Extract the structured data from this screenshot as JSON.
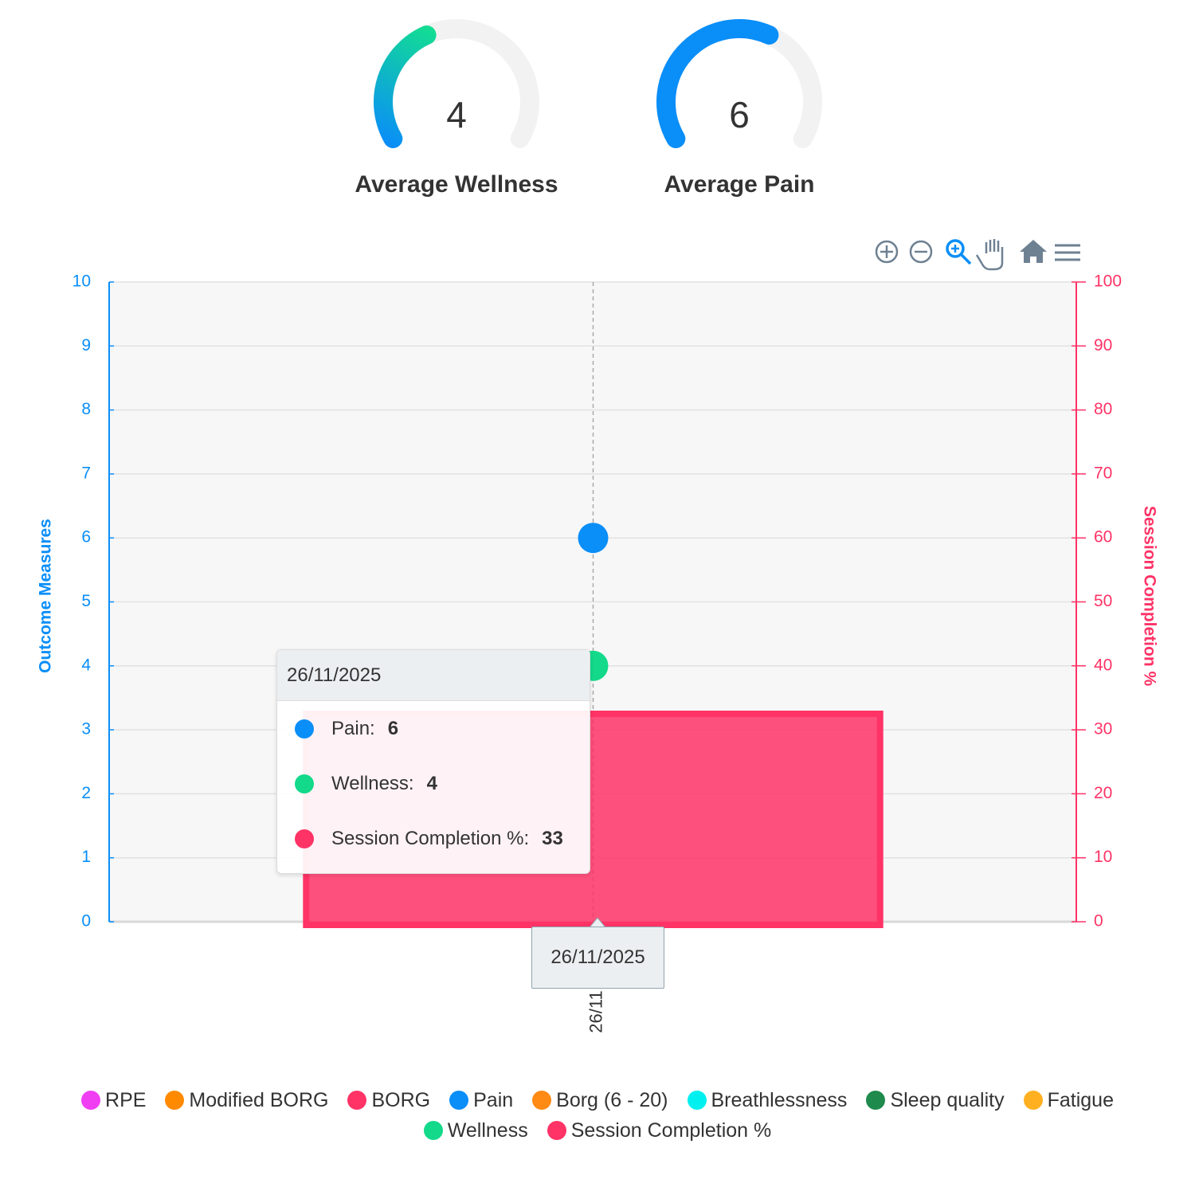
{
  "chart_data": [
    {
      "type": "gauge",
      "title": "Average Wellness",
      "value": 4,
      "ylim": [
        0,
        10
      ],
      "colors": [
        "#0a8ef8",
        "#13e08f"
      ]
    },
    {
      "type": "gauge",
      "title": "Average Pain",
      "value": 6,
      "ylim": [
        0,
        10
      ],
      "colors": [
        "#0a8ef8",
        "#0a8ef8"
      ]
    },
    {
      "type": "combo",
      "categories": [
        "26/11"
      ],
      "y_label": "Outcome Measures",
      "y2_label": "Session Completion %",
      "ylim": [
        0,
        10
      ],
      "yticks": [
        0,
        1,
        2,
        3,
        4,
        5,
        6,
        7,
        8,
        9,
        10
      ],
      "y2lim": [
        0,
        100
      ],
      "y2ticks": [
        0,
        10,
        20,
        30,
        40,
        50,
        60,
        70,
        80,
        90,
        100
      ],
      "grid": true,
      "series": [
        {
          "name": "RPE",
          "color": "#f03ef3",
          "values": [
            null
          ]
        },
        {
          "name": "Modified BORG",
          "color": "#ff8a00",
          "values": [
            null
          ]
        },
        {
          "name": "BORG",
          "color": "#ff3366",
          "values": [
            null
          ]
        },
        {
          "name": "Pain",
          "color": "#0a8ef8",
          "values": [
            6
          ]
        },
        {
          "name": "Borg (6 - 20)",
          "color": "#ff8a14",
          "values": [
            null
          ]
        },
        {
          "name": "Breathlessness",
          "color": "#00f0f0",
          "values": [
            null
          ]
        },
        {
          "name": "Sleep quality",
          "color": "#1e8a4c",
          "values": [
            null
          ]
        },
        {
          "name": "Fatigue",
          "color": "#ffb020",
          "values": [
            null
          ]
        },
        {
          "name": "Wellness",
          "color": "#13d98a",
          "values": [
            4
          ]
        },
        {
          "name": "Session Completion %",
          "color": "#ff3366",
          "values": [
            33
          ],
          "axis": "y2",
          "type": "bar"
        }
      ],
      "tooltip": {
        "title": "26/11/2025",
        "items": [
          {
            "label": "Pain:",
            "series": 3
          },
          {
            "label": "Wellness:",
            "series": 8
          },
          {
            "label": "Session Completion %:",
            "series": 9
          }
        ]
      }
    }
  ]
}
